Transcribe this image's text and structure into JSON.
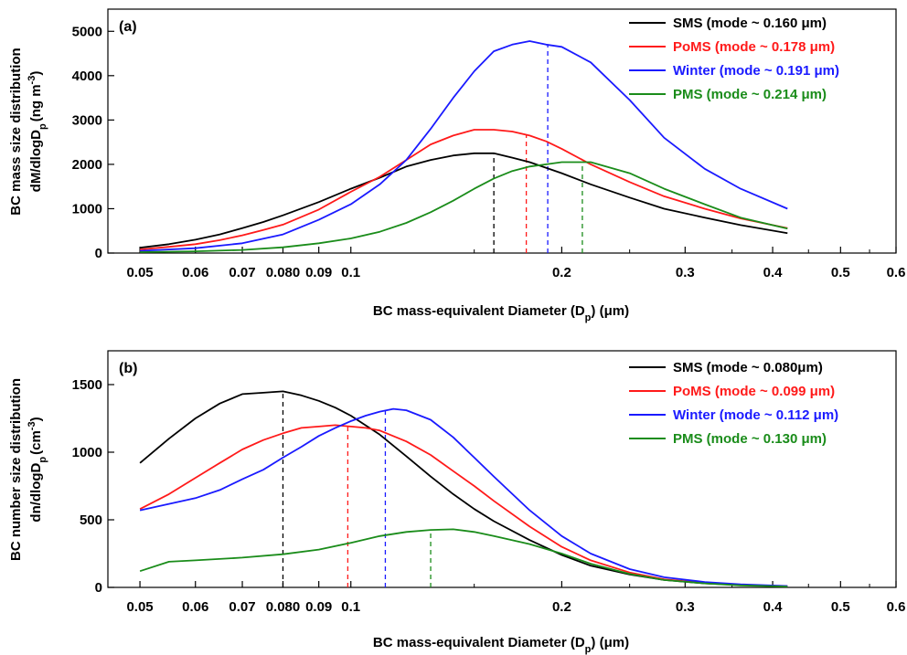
{
  "chart_data": [
    {
      "type": "line",
      "panel_label": "(a)",
      "xlabel_parts": [
        "BC mass-equivalent Diameter (D",
        "p",
        ") (μm)"
      ],
      "ylabel_line1": "BC mass size distribution",
      "ylabel_line2_parts": [
        "dM/dlogD",
        "p",
        "(ng m",
        "-3",
        ")"
      ],
      "x_scale": "log",
      "xlim": [
        0.045,
        0.6
      ],
      "ylim": [
        0,
        5500
      ],
      "x_ticks": [
        {
          "value": 0.05,
          "label": "0.05"
        },
        {
          "value": 0.06,
          "label": "0.06"
        },
        {
          "value": 0.07,
          "label": "0.07"
        },
        {
          "value": 0.08,
          "label": "0.080"
        },
        {
          "value": 0.09,
          "label": "0.09"
        },
        {
          "value": 0.1,
          "label": "0.1"
        },
        {
          "value": 0.2,
          "label": "0.2"
        },
        {
          "value": 0.3,
          "label": "0.3"
        },
        {
          "value": 0.4,
          "label": "0.4"
        },
        {
          "value": 0.5,
          "label": "0.5"
        },
        {
          "value": 0.6,
          "label": "0.6"
        }
      ],
      "y_ticks": [
        {
          "value": 0,
          "label": "0"
        },
        {
          "value": 1000,
          "label": "1000"
        },
        {
          "value": 2000,
          "label": "2000"
        },
        {
          "value": 3000,
          "label": "3000"
        },
        {
          "value": 4000,
          "label": "4000"
        },
        {
          "value": 5000,
          "label": "5000"
        }
      ],
      "legend_position": "top-right",
      "series": [
        {
          "name": "SMS (mode ~ 0.160 μm)",
          "color": "#000000",
          "mode": 0.16,
          "x": [
            0.05,
            0.055,
            0.06,
            0.065,
            0.07,
            0.075,
            0.08,
            0.09,
            0.1,
            0.11,
            0.12,
            0.13,
            0.14,
            0.15,
            0.16,
            0.17,
            0.18,
            0.2,
            0.22,
            0.25,
            0.28,
            0.32,
            0.36,
            0.42
          ],
          "y": [
            120,
            200,
            300,
            420,
            560,
            700,
            850,
            1150,
            1450,
            1700,
            1950,
            2100,
            2200,
            2250,
            2250,
            2150,
            2050,
            1800,
            1550,
            1250,
            1000,
            800,
            630,
            450
          ]
        },
        {
          "name": "PoMS (mode ~ 0.178 μm)",
          "color": "#ff1a1a",
          "mode": 0.178,
          "x": [
            0.05,
            0.055,
            0.06,
            0.065,
            0.07,
            0.075,
            0.08,
            0.09,
            0.1,
            0.11,
            0.12,
            0.13,
            0.14,
            0.15,
            0.16,
            0.17,
            0.18,
            0.19,
            0.2,
            0.22,
            0.25,
            0.28,
            0.32,
            0.36,
            0.42
          ],
          "y": [
            80,
            140,
            200,
            290,
            400,
            520,
            640,
            980,
            1380,
            1720,
            2100,
            2450,
            2650,
            2780,
            2780,
            2740,
            2650,
            2520,
            2350,
            2000,
            1600,
            1280,
            1000,
            780,
            560
          ]
        },
        {
          "name": "Winter (mode ~ 0.191 μm)",
          "color": "#1a1aff",
          "mode": 0.191,
          "x": [
            0.05,
            0.06,
            0.07,
            0.08,
            0.09,
            0.1,
            0.11,
            0.12,
            0.13,
            0.14,
            0.15,
            0.16,
            0.17,
            0.18,
            0.19,
            0.2,
            0.22,
            0.25,
            0.28,
            0.32,
            0.36,
            0.42
          ],
          "y": [
            50,
            110,
            220,
            420,
            750,
            1100,
            1550,
            2100,
            2800,
            3500,
            4100,
            4550,
            4700,
            4780,
            4700,
            4650,
            4300,
            3450,
            2600,
            1900,
            1450,
            1000
          ]
        },
        {
          "name": "PMS (mode ~ 0.214 μm)",
          "color": "#1a8c1a",
          "mode": 0.214,
          "x": [
            0.05,
            0.06,
            0.07,
            0.08,
            0.09,
            0.1,
            0.11,
            0.12,
            0.13,
            0.14,
            0.15,
            0.16,
            0.17,
            0.18,
            0.19,
            0.2,
            0.22,
            0.25,
            0.28,
            0.32,
            0.36,
            0.42
          ],
          "y": [
            20,
            40,
            70,
            130,
            220,
            330,
            480,
            680,
            920,
            1180,
            1450,
            1680,
            1850,
            1950,
            2000,
            2050,
            2050,
            1800,
            1450,
            1100,
            800,
            550
          ]
        }
      ]
    },
    {
      "type": "line",
      "panel_label": "(b)",
      "xlabel_parts": [
        "BC mass-equivalent Diameter (D",
        "p",
        ") (μm)"
      ],
      "ylabel_line1": "BC number size distribution",
      "ylabel_line2_parts": [
        "dn/dlogD",
        "p",
        "(cm",
        "-3",
        ")"
      ],
      "x_scale": "log",
      "xlim": [
        0.045,
        0.6
      ],
      "ylim": [
        0,
        1750
      ],
      "x_ticks": [
        {
          "value": 0.05,
          "label": "0.05"
        },
        {
          "value": 0.06,
          "label": "0.06"
        },
        {
          "value": 0.07,
          "label": "0.07"
        },
        {
          "value": 0.08,
          "label": "0.080"
        },
        {
          "value": 0.09,
          "label": "0.09"
        },
        {
          "value": 0.1,
          "label": "0.1"
        },
        {
          "value": 0.2,
          "label": "0.2"
        },
        {
          "value": 0.3,
          "label": "0.3"
        },
        {
          "value": 0.4,
          "label": "0.4"
        },
        {
          "value": 0.5,
          "label": "0.5"
        },
        {
          "value": 0.6,
          "label": "0.6"
        }
      ],
      "y_ticks": [
        {
          "value": 0,
          "label": "0"
        },
        {
          "value": 500,
          "label": "500"
        },
        {
          "value": 1000,
          "label": "1000"
        },
        {
          "value": 1500,
          "label": "1500"
        }
      ],
      "legend_position": "top-right",
      "series": [
        {
          "name": "SMS (mode ~ 0.080μm)",
          "color": "#000000",
          "mode": 0.08,
          "x": [
            0.05,
            0.055,
            0.06,
            0.065,
            0.07,
            0.075,
            0.08,
            0.085,
            0.09,
            0.095,
            0.1,
            0.11,
            0.12,
            0.13,
            0.14,
            0.15,
            0.16,
            0.18,
            0.2,
            0.22,
            0.25,
            0.28,
            0.32,
            0.36,
            0.42
          ],
          "y": [
            920,
            1100,
            1250,
            1360,
            1430,
            1440,
            1450,
            1420,
            1380,
            1330,
            1270,
            1130,
            970,
            820,
            690,
            580,
            490,
            350,
            240,
            160,
            95,
            55,
            30,
            18,
            8
          ]
        },
        {
          "name": "PoMS (mode ~ 0.099 μm)",
          "color": "#ff1a1a",
          "mode": 0.099,
          "x": [
            0.05,
            0.055,
            0.06,
            0.065,
            0.07,
            0.075,
            0.08,
            0.085,
            0.09,
            0.095,
            0.1,
            0.105,
            0.11,
            0.12,
            0.13,
            0.14,
            0.15,
            0.16,
            0.18,
            0.2,
            0.22,
            0.25,
            0.28,
            0.32,
            0.36,
            0.42
          ],
          "y": [
            580,
            690,
            810,
            920,
            1020,
            1090,
            1140,
            1180,
            1190,
            1200,
            1190,
            1180,
            1160,
            1080,
            980,
            860,
            750,
            640,
            450,
            300,
            200,
            110,
            60,
            32,
            18,
            8
          ]
        },
        {
          "name": "Winter (mode ~ 0.112 μm)",
          "color": "#1a1aff",
          "mode": 0.112,
          "x": [
            0.05,
            0.06,
            0.065,
            0.07,
            0.075,
            0.08,
            0.085,
            0.09,
            0.095,
            0.1,
            0.105,
            0.11,
            0.115,
            0.12,
            0.13,
            0.14,
            0.15,
            0.16,
            0.18,
            0.2,
            0.22,
            0.25,
            0.28,
            0.32,
            0.36,
            0.42
          ],
          "y": [
            570,
            660,
            720,
            800,
            870,
            960,
            1040,
            1120,
            1180,
            1230,
            1270,
            1300,
            1320,
            1310,
            1240,
            1110,
            960,
            820,
            570,
            380,
            250,
            135,
            75,
            40,
            22,
            10
          ]
        },
        {
          "name": "PMS (mode ~ 0.130 μm)",
          "color": "#1a8c1a",
          "mode": 0.13,
          "x": [
            0.05,
            0.055,
            0.06,
            0.07,
            0.08,
            0.09,
            0.1,
            0.11,
            0.12,
            0.13,
            0.14,
            0.15,
            0.16,
            0.18,
            0.2,
            0.22,
            0.25,
            0.28,
            0.32,
            0.36,
            0.42
          ],
          "y": [
            120,
            190,
            200,
            220,
            245,
            280,
            330,
            380,
            410,
            425,
            430,
            410,
            380,
            320,
            250,
            175,
            100,
            55,
            30,
            15,
            6
          ]
        }
      ]
    }
  ]
}
